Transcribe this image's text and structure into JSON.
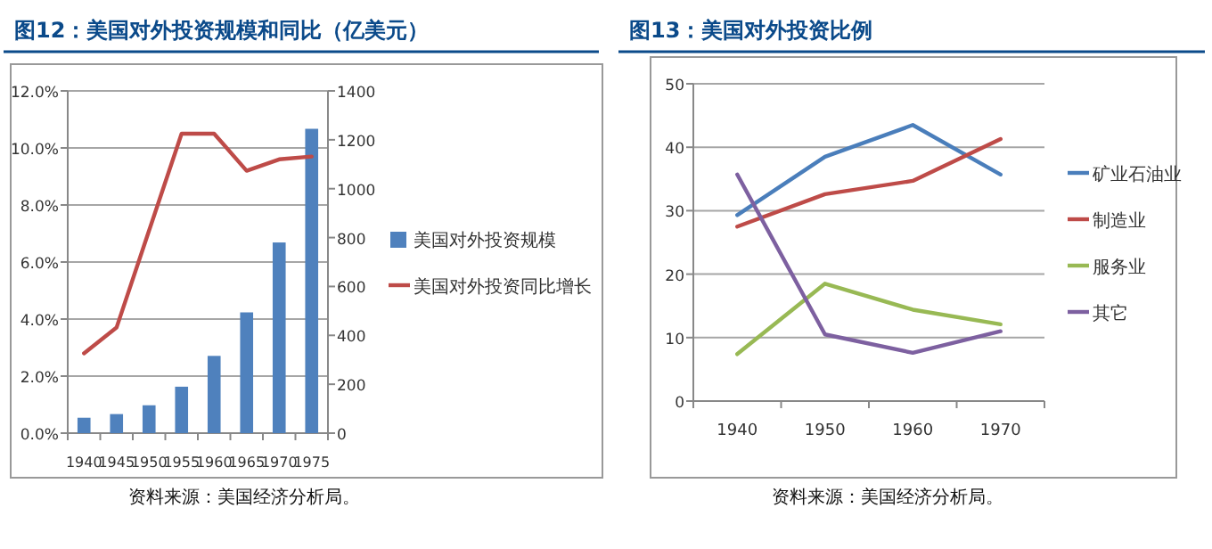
{
  "chart_data": [
    {
      "type": "bar",
      "title": "图12：美国对外投资规模和同比（亿美元）",
      "categories": [
        "1940",
        "1945",
        "1950",
        "1955",
        "1960",
        "1965",
        "1970",
        "1975"
      ],
      "series": [
        {
          "name": "美国对外投资规模",
          "axis": "y2",
          "color": "#4f81bd",
          "values": [
            63,
            78,
            114,
            190,
            316,
            494,
            780,
            1245
          ]
        },
        {
          "name": "美国对外投资同比增长",
          "type": "line",
          "axis": "y",
          "color": "#be4b48",
          "values": [
            2.8,
            3.7,
            7.1,
            10.5,
            10.5,
            9.2,
            9.6,
            9.7
          ]
        }
      ],
      "ylim": [
        0,
        12
      ],
      "yticks": [
        {
          "value": 0,
          "label": "0.0%"
        },
        {
          "value": 2,
          "label": "2.0%"
        },
        {
          "value": 4,
          "label": "4.0%"
        },
        {
          "value": 6,
          "label": "6.0%"
        },
        {
          "value": 8,
          "label": "8.0%"
        },
        {
          "value": 10,
          "label": "10.0%"
        },
        {
          "value": 12,
          "label": "12.0%"
        }
      ],
      "y2lim": [
        0,
        1400
      ],
      "y2ticks": [
        0,
        200,
        400,
        600,
        800,
        1000,
        1200,
        1400
      ],
      "grid": "y",
      "legend": "right",
      "annotations": [
        "资料来源：美国经济分析局。"
      ]
    },
    {
      "type": "line",
      "title": "图13：美国对外投资比例",
      "categories": [
        "1940",
        "1950",
        "1960",
        "1970"
      ],
      "series": [
        {
          "name": "矿业石油业",
          "color": "#4a7ebb",
          "values": [
            29.3,
            38.5,
            43.5,
            35.7
          ]
        },
        {
          "name": "制造业",
          "color": "#be4b48",
          "values": [
            27.5,
            32.6,
            34.7,
            41.3
          ]
        },
        {
          "name": "服务业",
          "color": "#98b954",
          "values": [
            7.4,
            18.5,
            14.4,
            12.1
          ]
        },
        {
          "name": "其它",
          "color": "#7d60a0",
          "values": [
            35.7,
            10.5,
            7.6,
            11.0
          ]
        }
      ],
      "ylim": [
        0,
        50
      ],
      "yticks": [
        0,
        10,
        20,
        30,
        40,
        50
      ],
      "grid": "y",
      "legend": "right",
      "annotations": [
        "资料来源：美国经济分析局。"
      ]
    }
  ]
}
